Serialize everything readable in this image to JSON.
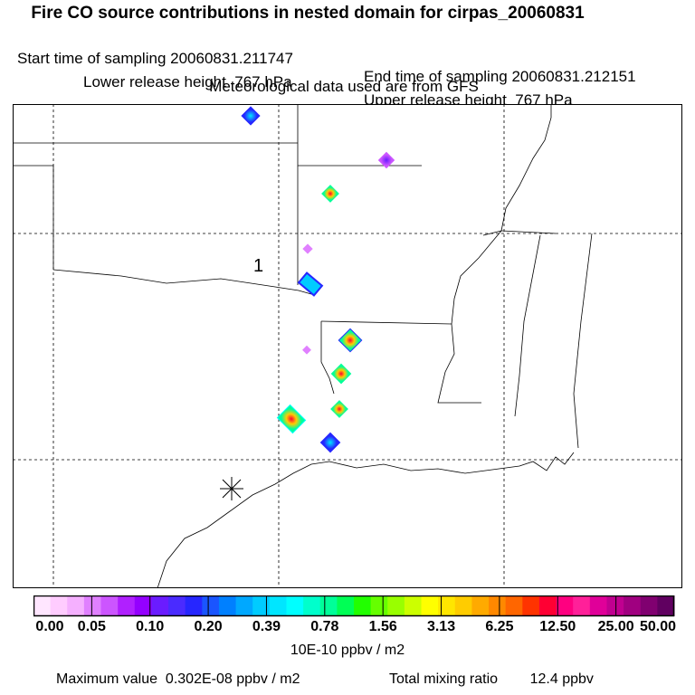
{
  "title": "Fire CO source contributions in nested domain for cirpas_20060831",
  "sampling": {
    "start": "Start time of sampling 20060831.211747",
    "end": "End time of sampling 20060831.212151"
  },
  "release": {
    "lower": "Lower release height  767 hPa",
    "upper": "Upper release height  767 hPa"
  },
  "met_source": "Meteorological data used are from GFS",
  "map": {
    "label": "1"
  },
  "colorbar": {
    "ticks": [
      "0.00",
      "0.05",
      "0.10",
      "0.20",
      "0.39",
      "0.78",
      "1.56",
      "3.13",
      "6.25",
      "12.50",
      "25.00",
      "50.00"
    ],
    "units": "10E-10 ppbv / m2",
    "colors": [
      "#ffe6ff",
      "#ffccff",
      "#f5b0ff",
      "#e080ff",
      "#cc55ff",
      "#b020ff",
      "#9400ff",
      "#6a1cff",
      "#4a2bff",
      "#2626ff",
      "#1a55ff",
      "#0080ff",
      "#00a8ff",
      "#00ccff",
      "#00e6ff",
      "#00ffff",
      "#00ffcc",
      "#00ff99",
      "#00ff55",
      "#22ff00",
      "#66ff00",
      "#99ff00",
      "#ccff00",
      "#ffff00",
      "#ffe600",
      "#ffcc00",
      "#ffaa00",
      "#ff8800",
      "#ff6600",
      "#ff3300",
      "#ff0033",
      "#ff0080",
      "#ff2099",
      "#e00099",
      "#c00090",
      "#a00080",
      "#800070",
      "#600060"
    ]
  },
  "footer": {
    "max_value": "Maximum value  0.302E-08 ppbv / m2",
    "total": "Total mixing ratio        12.4 ppbv"
  }
}
